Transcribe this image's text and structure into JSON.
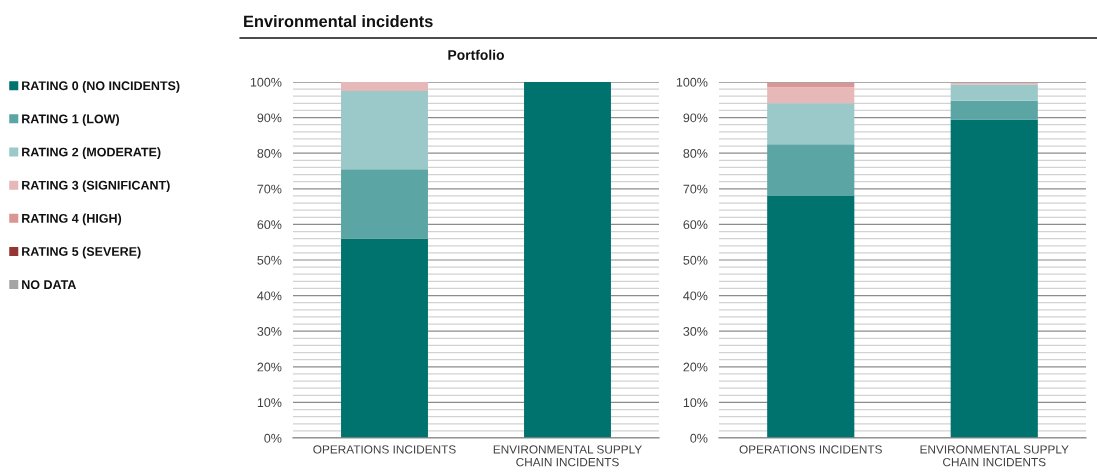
{
  "chart_data": [
    {
      "type": "bar",
      "stacked": true,
      "title": "Environmental incidents",
      "subtitle": "Portfolio",
      "categories": [
        "OPERATIONS INCIDENTS",
        "ENVIRONMENTAL SUPPLY CHAIN INCIDENTS"
      ],
      "series": [
        {
          "name": "RATING 0 (NO INCIDENTS)",
          "color": "#00736f",
          "values": [
            56,
            100
          ]
        },
        {
          "name": "RATING 1 (LOW)",
          "color": "#5ba5a5",
          "values": [
            19.5,
            0
          ]
        },
        {
          "name": "RATING 2 (MODERATE)",
          "color": "#9bc8c8",
          "values": [
            22,
            0
          ]
        },
        {
          "name": "RATING 3 (SIGNIFICANT)",
          "color": "#e6b8b8",
          "values": [
            2.5,
            0
          ]
        },
        {
          "name": "RATING 4 (HIGH)",
          "color": "#da9694",
          "values": [
            0,
            0
          ]
        },
        {
          "name": "RATING 5 (SEVERE)",
          "color": "#963634",
          "values": [
            0,
            0
          ]
        },
        {
          "name": "NO DATA",
          "color": "#a5a5a5",
          "values": [
            0,
            0
          ]
        }
      ],
      "ylim": [
        0,
        100
      ],
      "yticks": [
        {
          "value": 0,
          "label": "0%"
        },
        {
          "value": 2,
          "label": null
        },
        {
          "value": 4,
          "label": null
        },
        {
          "value": 6,
          "label": null
        },
        {
          "value": 8,
          "label": null
        },
        {
          "value": 10,
          "label": "10%"
        },
        {
          "value": 12,
          "label": null
        },
        {
          "value": 14,
          "label": null
        },
        {
          "value": 16,
          "label": null
        },
        {
          "value": 18,
          "label": null
        },
        {
          "value": 20,
          "label": "20%"
        },
        {
          "value": 22,
          "label": null
        },
        {
          "value": 24,
          "label": null
        },
        {
          "value": 26,
          "label": null
        },
        {
          "value": 28,
          "label": null
        },
        {
          "value": 30,
          "label": "30%"
        },
        {
          "value": 32,
          "label": null
        },
        {
          "value": 34,
          "label": null
        },
        {
          "value": 36,
          "label": null
        },
        {
          "value": 38,
          "label": null
        },
        {
          "value": 40,
          "label": "40%"
        },
        {
          "value": 42,
          "label": null
        },
        {
          "value": 44,
          "label": null
        },
        {
          "value": 46,
          "label": null
        },
        {
          "value": 48,
          "label": null
        },
        {
          "value": 50,
          "label": "50%"
        },
        {
          "value": 52,
          "label": null
        },
        {
          "value": 54,
          "label": null
        },
        {
          "value": 56,
          "label": null
        },
        {
          "value": 58,
          "label": null
        },
        {
          "value": 60,
          "label": "60%"
        },
        {
          "value": 62,
          "label": null
        },
        {
          "value": 64,
          "label": null
        },
        {
          "value": 66,
          "label": null
        },
        {
          "value": 68,
          "label": null
        },
        {
          "value": 70,
          "label": "70%"
        },
        {
          "value": 72,
          "label": null
        },
        {
          "value": 74,
          "label": null
        },
        {
          "value": 76,
          "label": null
        },
        {
          "value": 78,
          "label": null
        },
        {
          "value": 80,
          "label": "80%"
        },
        {
          "value": 82,
          "label": null
        },
        {
          "value": 84,
          "label": null
        },
        {
          "value": 86,
          "label": null
        },
        {
          "value": 88,
          "label": null
        },
        {
          "value": 90,
          "label": "90%"
        },
        {
          "value": 92,
          "label": null
        },
        {
          "value": 94,
          "label": null
        },
        {
          "value": 96,
          "label": null
        },
        {
          "value": 98,
          "label": null
        },
        {
          "value": 100,
          "label": "100%"
        }
      ],
      "grid": "y",
      "legend": "left"
    },
    {
      "type": "bar",
      "stacked": true,
      "categories": [
        "OPERATIONS INCIDENTS",
        "ENVIRONMENTAL SUPPLY CHAIN INCIDENTS"
      ],
      "series": [
        {
          "color": "#00736f",
          "values": [
            68,
            89.5
          ]
        },
        {
          "color": "#5ba5a5",
          "values": [
            14.5,
            5.2
          ]
        },
        {
          "color": "#9bc8c8",
          "values": [
            11.5,
            4.5
          ]
        },
        {
          "color": "#e6b8b8",
          "values": [
            4.5,
            0.5
          ]
        },
        {
          "color": "#da9694",
          "values": [
            1.2,
            0
          ]
        },
        {
          "color": "#963634",
          "values": [
            0,
            0
          ]
        },
        {
          "color": "#a5a5a5",
          "values": [
            0.3,
            0.3
          ]
        }
      ],
      "ylim": [
        0,
        100
      ],
      "yticks": [
        {
          "value": 0,
          "label": "0%"
        },
        {
          "value": 2,
          "label": null
        },
        {
          "value": 4,
          "label": null
        },
        {
          "value": 6,
          "label": null
        },
        {
          "value": 8,
          "label": null
        },
        {
          "value": 10,
          "label": "10%"
        },
        {
          "value": 12,
          "label": null
        },
        {
          "value": 14,
          "label": null
        },
        {
          "value": 16,
          "label": null
        },
        {
          "value": 18,
          "label": null
        },
        {
          "value": 20,
          "label": "20%"
        },
        {
          "value": 22,
          "label": null
        },
        {
          "value": 24,
          "label": null
        },
        {
          "value": 26,
          "label": null
        },
        {
          "value": 28,
          "label": null
        },
        {
          "value": 30,
          "label": "30%"
        },
        {
          "value": 32,
          "label": null
        },
        {
          "value": 34,
          "label": null
        },
        {
          "value": 36,
          "label": null
        },
        {
          "value": 38,
          "label": null
        },
        {
          "value": 40,
          "label": "40%"
        },
        {
          "value": 42,
          "label": null
        },
        {
          "value": 44,
          "label": null
        },
        {
          "value": 46,
          "label": null
        },
        {
          "value": 48,
          "label": null
        },
        {
          "value": 50,
          "label": "50%"
        },
        {
          "value": 52,
          "label": null
        },
        {
          "value": 54,
          "label": null
        },
        {
          "value": 56,
          "label": null
        },
        {
          "value": 58,
          "label": null
        },
        {
          "value": 60,
          "label": "60%"
        },
        {
          "value": 62,
          "label": null
        },
        {
          "value": 64,
          "label": null
        },
        {
          "value": 66,
          "label": null
        },
        {
          "value": 68,
          "label": null
        },
        {
          "value": 70,
          "label": "70%"
        },
        {
          "value": 72,
          "label": null
        },
        {
          "value": 74,
          "label": null
        },
        {
          "value": 76,
          "label": null
        },
        {
          "value": 78,
          "label": null
        },
        {
          "value": 80,
          "label": "80%"
        },
        {
          "value": 82,
          "label": null
        },
        {
          "value": 84,
          "label": null
        },
        {
          "value": 86,
          "label": null
        },
        {
          "value": 88,
          "label": null
        },
        {
          "value": 90,
          "label": "90%"
        },
        {
          "value": 92,
          "label": null
        },
        {
          "value": 94,
          "label": null
        },
        {
          "value": 96,
          "label": null
        },
        {
          "value": 98,
          "label": null
        },
        {
          "value": 100,
          "label": "100%"
        }
      ],
      "grid": "y"
    }
  ]
}
